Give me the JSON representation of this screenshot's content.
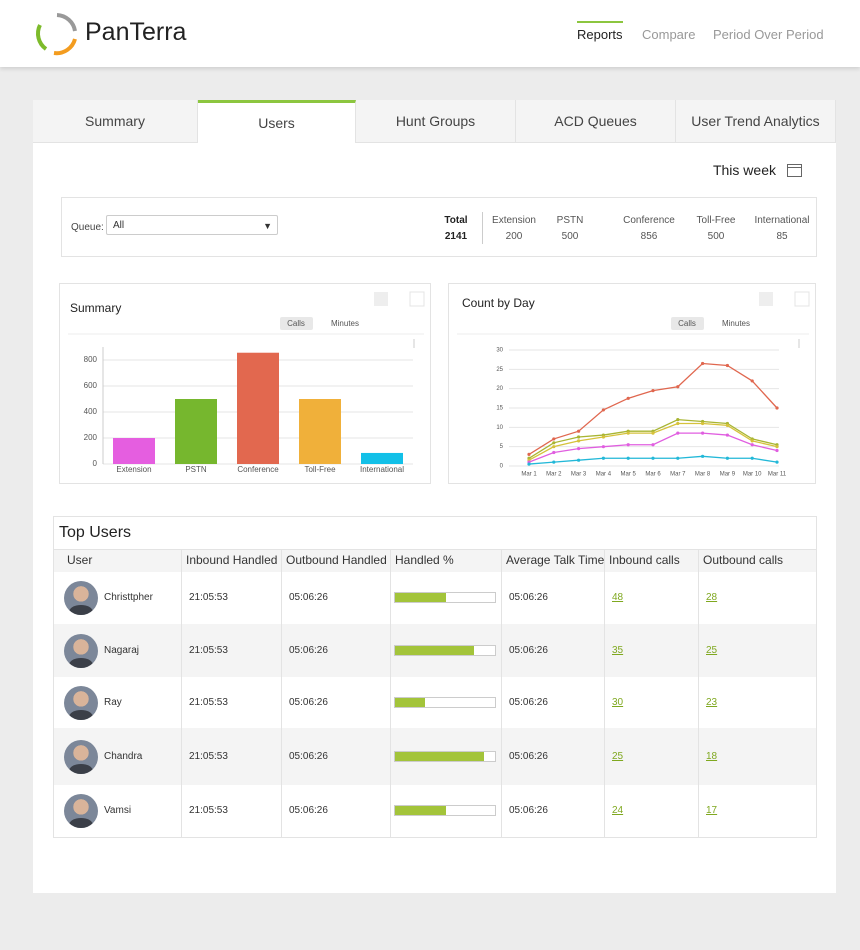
{
  "header": {
    "logo": "PanTerra",
    "nav": [
      "Reports",
      "Compare",
      "Period Over Period"
    ],
    "active_nav": 0
  },
  "tabs": [
    "Summary",
    "Users",
    "Hunt Groups",
    "ACD Queues",
    "User Trend Analytics"
  ],
  "active_tab": 1,
  "period": "This week",
  "filter": {
    "label": "Queue:",
    "value": "All"
  },
  "stats": [
    {
      "label": "Total",
      "value": 2141
    },
    {
      "label": "Extension",
      "value": 200
    },
    {
      "label": "PSTN",
      "value": 500
    },
    {
      "label": "Conference",
      "value": 856
    },
    {
      "label": "Toll-Free",
      "value": 500
    },
    {
      "label": "International",
      "value": 85
    }
  ],
  "chart_data": [
    {
      "type": "bar",
      "title": "Summary",
      "toggles": [
        "Calls",
        "Minutes"
      ],
      "categories": [
        "Extension",
        "PSTN",
        "Conference",
        "Toll-Free",
        "International"
      ],
      "values": [
        200,
        500,
        856,
        500,
        85
      ],
      "colors": [
        "#e55ee0",
        "#76b72e",
        "#e2684f",
        "#f0b03a",
        "#12c0e8"
      ],
      "ylim": [
        0,
        900
      ],
      "yticks": [
        0,
        200,
        400,
        600,
        800
      ],
      "grid": true
    },
    {
      "type": "line",
      "title": "Count by Day",
      "toggles": [
        "Calls",
        "Minutes"
      ],
      "categories": [
        "Mar 1",
        "Mar 2",
        "Mar 3",
        "Mar 4",
        "Mar 5",
        "Mar 6",
        "Mar 7",
        "Mar 8",
        "Mar 9",
        "Mar 10",
        "Mar 11"
      ],
      "series": [
        {
          "color": "#e0674f",
          "values": [
            3,
            7,
            9,
            14.5,
            17.5,
            19.5,
            20.5,
            26.5,
            26,
            22,
            15
          ]
        },
        {
          "color": "#a8b532",
          "values": [
            2,
            6,
            7.5,
            8,
            9,
            9,
            12,
            11.5,
            11,
            7,
            5.5
          ]
        },
        {
          "color": "#d6c23b",
          "values": [
            1.5,
            5,
            6.5,
            7.5,
            8.5,
            8.5,
            11,
            11,
            10.5,
            6.5,
            5
          ]
        },
        {
          "color": "#e05ee0",
          "values": [
            1,
            3.5,
            4.5,
            5,
            5.5,
            5.5,
            8.5,
            8.5,
            8,
            5.5,
            4
          ]
        },
        {
          "color": "#22b8d8",
          "values": [
            0.5,
            1,
            1.5,
            2,
            2,
            2,
            2,
            2.5,
            2,
            2,
            1
          ]
        }
      ],
      "ylim": [
        0,
        30
      ],
      "yticks": [
        0,
        5,
        10,
        15,
        20,
        25,
        30
      ],
      "grid": true
    }
  ],
  "table": {
    "title": "Top Users",
    "columns": [
      "User",
      "Inbound Handled",
      "Outbound Handled",
      "Handled %",
      "Average Talk Time",
      "Inbound calls",
      "Outbound calls"
    ],
    "rows": [
      {
        "user": "Christtpher",
        "inbound_handled": "21:05:53",
        "outbound_handled": "05:06:26",
        "handled_pct": 51,
        "avg_talk_time": "05:06:26",
        "inbound_calls": 48,
        "outbound_calls": 28
      },
      {
        "user": "Nagaraj",
        "inbound_handled": "21:05:53",
        "outbound_handled": "05:06:26",
        "handled_pct": 79,
        "avg_talk_time": "05:06:26",
        "inbound_calls": 35,
        "outbound_calls": 25
      },
      {
        "user": "Ray",
        "inbound_handled": "21:05:53",
        "outbound_handled": "05:06:26",
        "handled_pct": 30,
        "avg_talk_time": "05:06:26",
        "inbound_calls": 30,
        "outbound_calls": 23
      },
      {
        "user": "Chandra",
        "inbound_handled": "21:05:53",
        "outbound_handled": "05:06:26",
        "handled_pct": 89,
        "avg_talk_time": "05:06:26",
        "inbound_calls": 25,
        "outbound_calls": 18
      },
      {
        "user": "Vamsi",
        "inbound_handled": "21:05:53",
        "outbound_handled": "05:06:26",
        "handled_pct": 51,
        "avg_talk_time": "05:06:26",
        "inbound_calls": 24,
        "outbound_calls": 17
      }
    ]
  }
}
